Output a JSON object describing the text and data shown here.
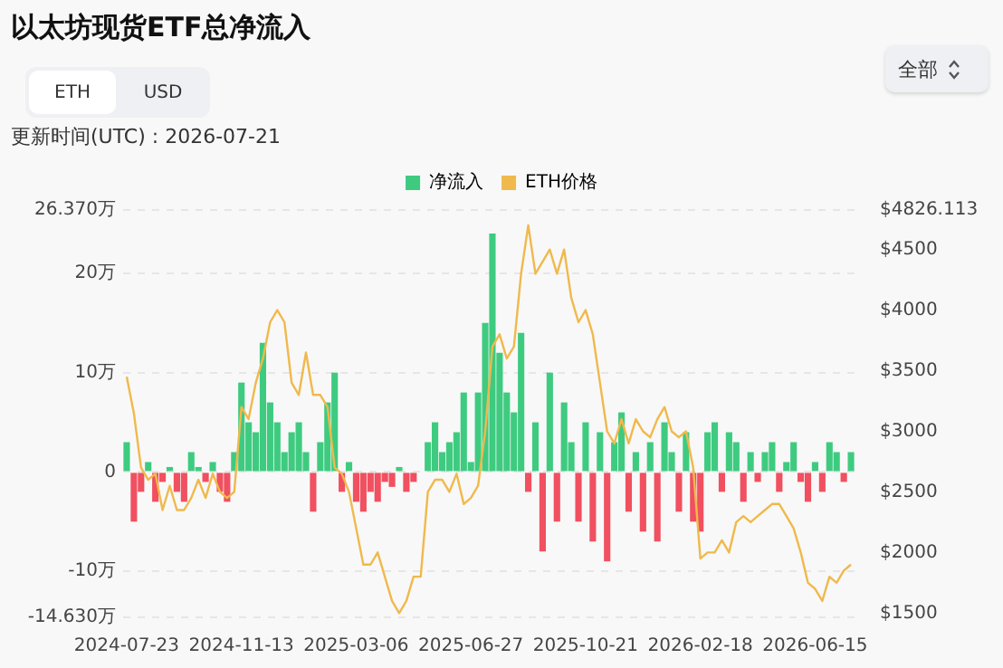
{
  "chart_data": {
    "type": "bar",
    "title": "以太坊现货ETF总净流入",
    "subtitle": "更新时间(UTC) : 2026-07-21",
    "annotations": [
      "ETH",
      "USD",
      "全部"
    ],
    "categories": [
      "2024-07-23",
      null,
      null,
      null,
      null,
      null,
      null,
      null,
      null,
      null,
      null,
      null,
      null,
      null,
      null,
      null,
      "2024-11-13",
      null,
      null,
      null,
      null,
      null,
      null,
      null,
      null,
      null,
      null,
      null,
      null,
      null,
      null,
      null,
      "2025-03-06",
      null,
      null,
      null,
      null,
      null,
      null,
      null,
      null,
      null,
      null,
      null,
      null,
      null,
      null,
      null,
      "2025-06-27",
      null,
      null,
      null,
      null,
      null,
      null,
      null,
      null,
      null,
      null,
      null,
      null,
      null,
      null,
      null,
      "2025-10-21",
      null,
      null,
      null,
      null,
      null,
      null,
      null,
      null,
      null,
      null,
      null,
      null,
      null,
      null,
      null,
      "2026-02-18",
      null,
      null,
      null,
      null,
      null,
      null,
      null,
      null,
      null,
      null,
      null,
      null,
      null,
      null,
      null,
      "2026-06-15",
      null,
      null,
      null,
      null,
      null
    ],
    "series": [
      {
        "name": "净流入",
        "color": "#3ecb80",
        "values": [
          3,
          -5,
          -2,
          1,
          -3,
          -1,
          0.5,
          -2,
          -3,
          2,
          0.5,
          -1,
          1,
          -2,
          -3,
          2,
          9,
          5,
          4,
          13,
          7,
          5,
          2,
          4,
          5,
          2,
          -4,
          3,
          7,
          10,
          -2,
          1,
          -3,
          -4,
          -2,
          -3,
          -1,
          -1.5,
          0.5,
          -2,
          -1,
          0,
          3,
          5,
          2,
          3,
          4,
          8,
          1,
          8,
          15,
          24,
          12,
          8,
          6,
          14,
          -2,
          5,
          -8,
          10,
          -5,
          7,
          3,
          -5,
          5,
          -7,
          4,
          -9,
          3,
          6,
          -4,
          2,
          -6,
          3,
          -7,
          5,
          2,
          -4,
          4,
          -5,
          -6,
          4,
          5,
          -2,
          4,
          3,
          -3,
          2,
          -1,
          2,
          3,
          -2,
          1,
          3,
          -1,
          -3,
          1,
          -2,
          3,
          2,
          -1,
          2
        ],
        "colors": [
          "#3ecb80",
          "#f0505f",
          "#f0505f",
          "#3ecb80",
          "#f0505f",
          "#f0505f",
          "#3ecb80",
          "#f0505f",
          "#f0505f",
          "#3ecb80",
          "#3ecb80",
          "#f0505f",
          "#3ecb80",
          "#f0505f",
          "#f0505f",
          "#3ecb80",
          "#3ecb80",
          "#3ecb80",
          "#3ecb80",
          "#3ecb80",
          "#3ecb80",
          "#3ecb80",
          "#3ecb80",
          "#3ecb80",
          "#3ecb80",
          "#3ecb80",
          "#f0505f",
          "#3ecb80",
          "#3ecb80",
          "#3ecb80",
          "#f0505f",
          "#3ecb80",
          "#f0505f",
          "#f0505f",
          "#f0505f",
          "#f0505f",
          "#f0505f",
          "#f0505f",
          "#3ecb80",
          "#f0505f",
          "#f0505f",
          "#3ecb80",
          "#3ecb80",
          "#3ecb80",
          "#3ecb80",
          "#3ecb80",
          "#3ecb80",
          "#3ecb80",
          "#3ecb80",
          "#3ecb80",
          "#3ecb80",
          "#3ecb80",
          "#3ecb80",
          "#3ecb80",
          "#3ecb80",
          "#3ecb80",
          "#f0505f",
          "#3ecb80",
          "#f0505f",
          "#3ecb80",
          "#f0505f",
          "#3ecb80",
          "#3ecb80",
          "#f0505f",
          "#3ecb80",
          "#f0505f",
          "#3ecb80",
          "#f0505f",
          "#3ecb80",
          "#3ecb80",
          "#f0505f",
          "#3ecb80",
          "#f0505f",
          "#3ecb80",
          "#f0505f",
          "#3ecb80",
          "#3ecb80",
          "#f0505f",
          "#3ecb80",
          "#f0505f",
          "#f0505f",
          "#3ecb80",
          "#3ecb80",
          "#f0505f",
          "#3ecb80",
          "#3ecb80",
          "#f0505f",
          "#3ecb80",
          "#f0505f",
          "#3ecb80",
          "#3ecb80",
          "#f0505f",
          "#3ecb80",
          "#3ecb80",
          "#f0505f",
          "#f0505f",
          "#3ecb80",
          "#f0505f",
          "#3ecb80",
          "#3ecb80",
          "#f0505f",
          "#3ecb80"
        ]
      },
      {
        "name": "ETH价格",
        "type": "line",
        "axis": "y2",
        "color": "#f0b94c",
        "marker": "none",
        "values": [
          3450,
          3150,
          2700,
          2600,
          2650,
          2350,
          2550,
          2350,
          2350,
          2450,
          2600,
          2450,
          2650,
          2500,
          2450,
          2500,
          3200,
          3100,
          3400,
          3600,
          3900,
          4000,
          3900,
          3400,
          3300,
          3650,
          3300,
          3300,
          3200,
          2700,
          2650,
          2500,
          2200,
          1900,
          1900,
          2000,
          1800,
          1600,
          1500,
          1600,
          1800,
          1800,
          2500,
          2600,
          2600,
          2500,
          2650,
          2400,
          2450,
          2550,
          3000,
          3700,
          3800,
          3600,
          3700,
          4300,
          4700,
          4300,
          4400,
          4500,
          4300,
          4500,
          4100,
          3900,
          4000,
          3800,
          3400,
          3000,
          2900,
          3100,
          2900,
          3100,
          3000,
          2950,
          3100,
          3200,
          3000,
          2950,
          3000,
          2700,
          1950,
          2000,
          2000,
          2100,
          2000,
          2250,
          2300,
          2250,
          2300,
          2350,
          2400,
          2400,
          2300,
          2200,
          2000,
          1750,
          1700,
          1600,
          1800,
          1750,
          1850,
          1900
        ]
      }
    ],
    "ylim": [
      -14.63,
      26.37
    ],
    "yticks": [
      {
        "value": -14.63,
        "label": "-14.630万"
      },
      {
        "value": -10,
        "label": "-10万"
      },
      0,
      {
        "value": 10,
        "label": "10万"
      },
      {
        "value": 20,
        "label": "20万"
      },
      {
        "value": 26.37,
        "label": "26.370万"
      }
    ],
    "y2lim": [
      1465,
      4826.113
    ],
    "y2ticks": [
      {
        "value": 1500,
        "label": "$1500"
      },
      {
        "value": 2000,
        "label": "$2000"
      },
      {
        "value": 2500,
        "label": "$2500"
      },
      {
        "value": 3000,
        "label": "$3000"
      },
      {
        "value": 3500,
        "label": "$3500"
      },
      {
        "value": 4000,
        "label": "$4000"
      },
      {
        "value": 4500,
        "label": "$4500"
      },
      {
        "value": 4826.113,
        "label": "$4826.113"
      }
    ],
    "grid": "y",
    "legend": "top"
  }
}
